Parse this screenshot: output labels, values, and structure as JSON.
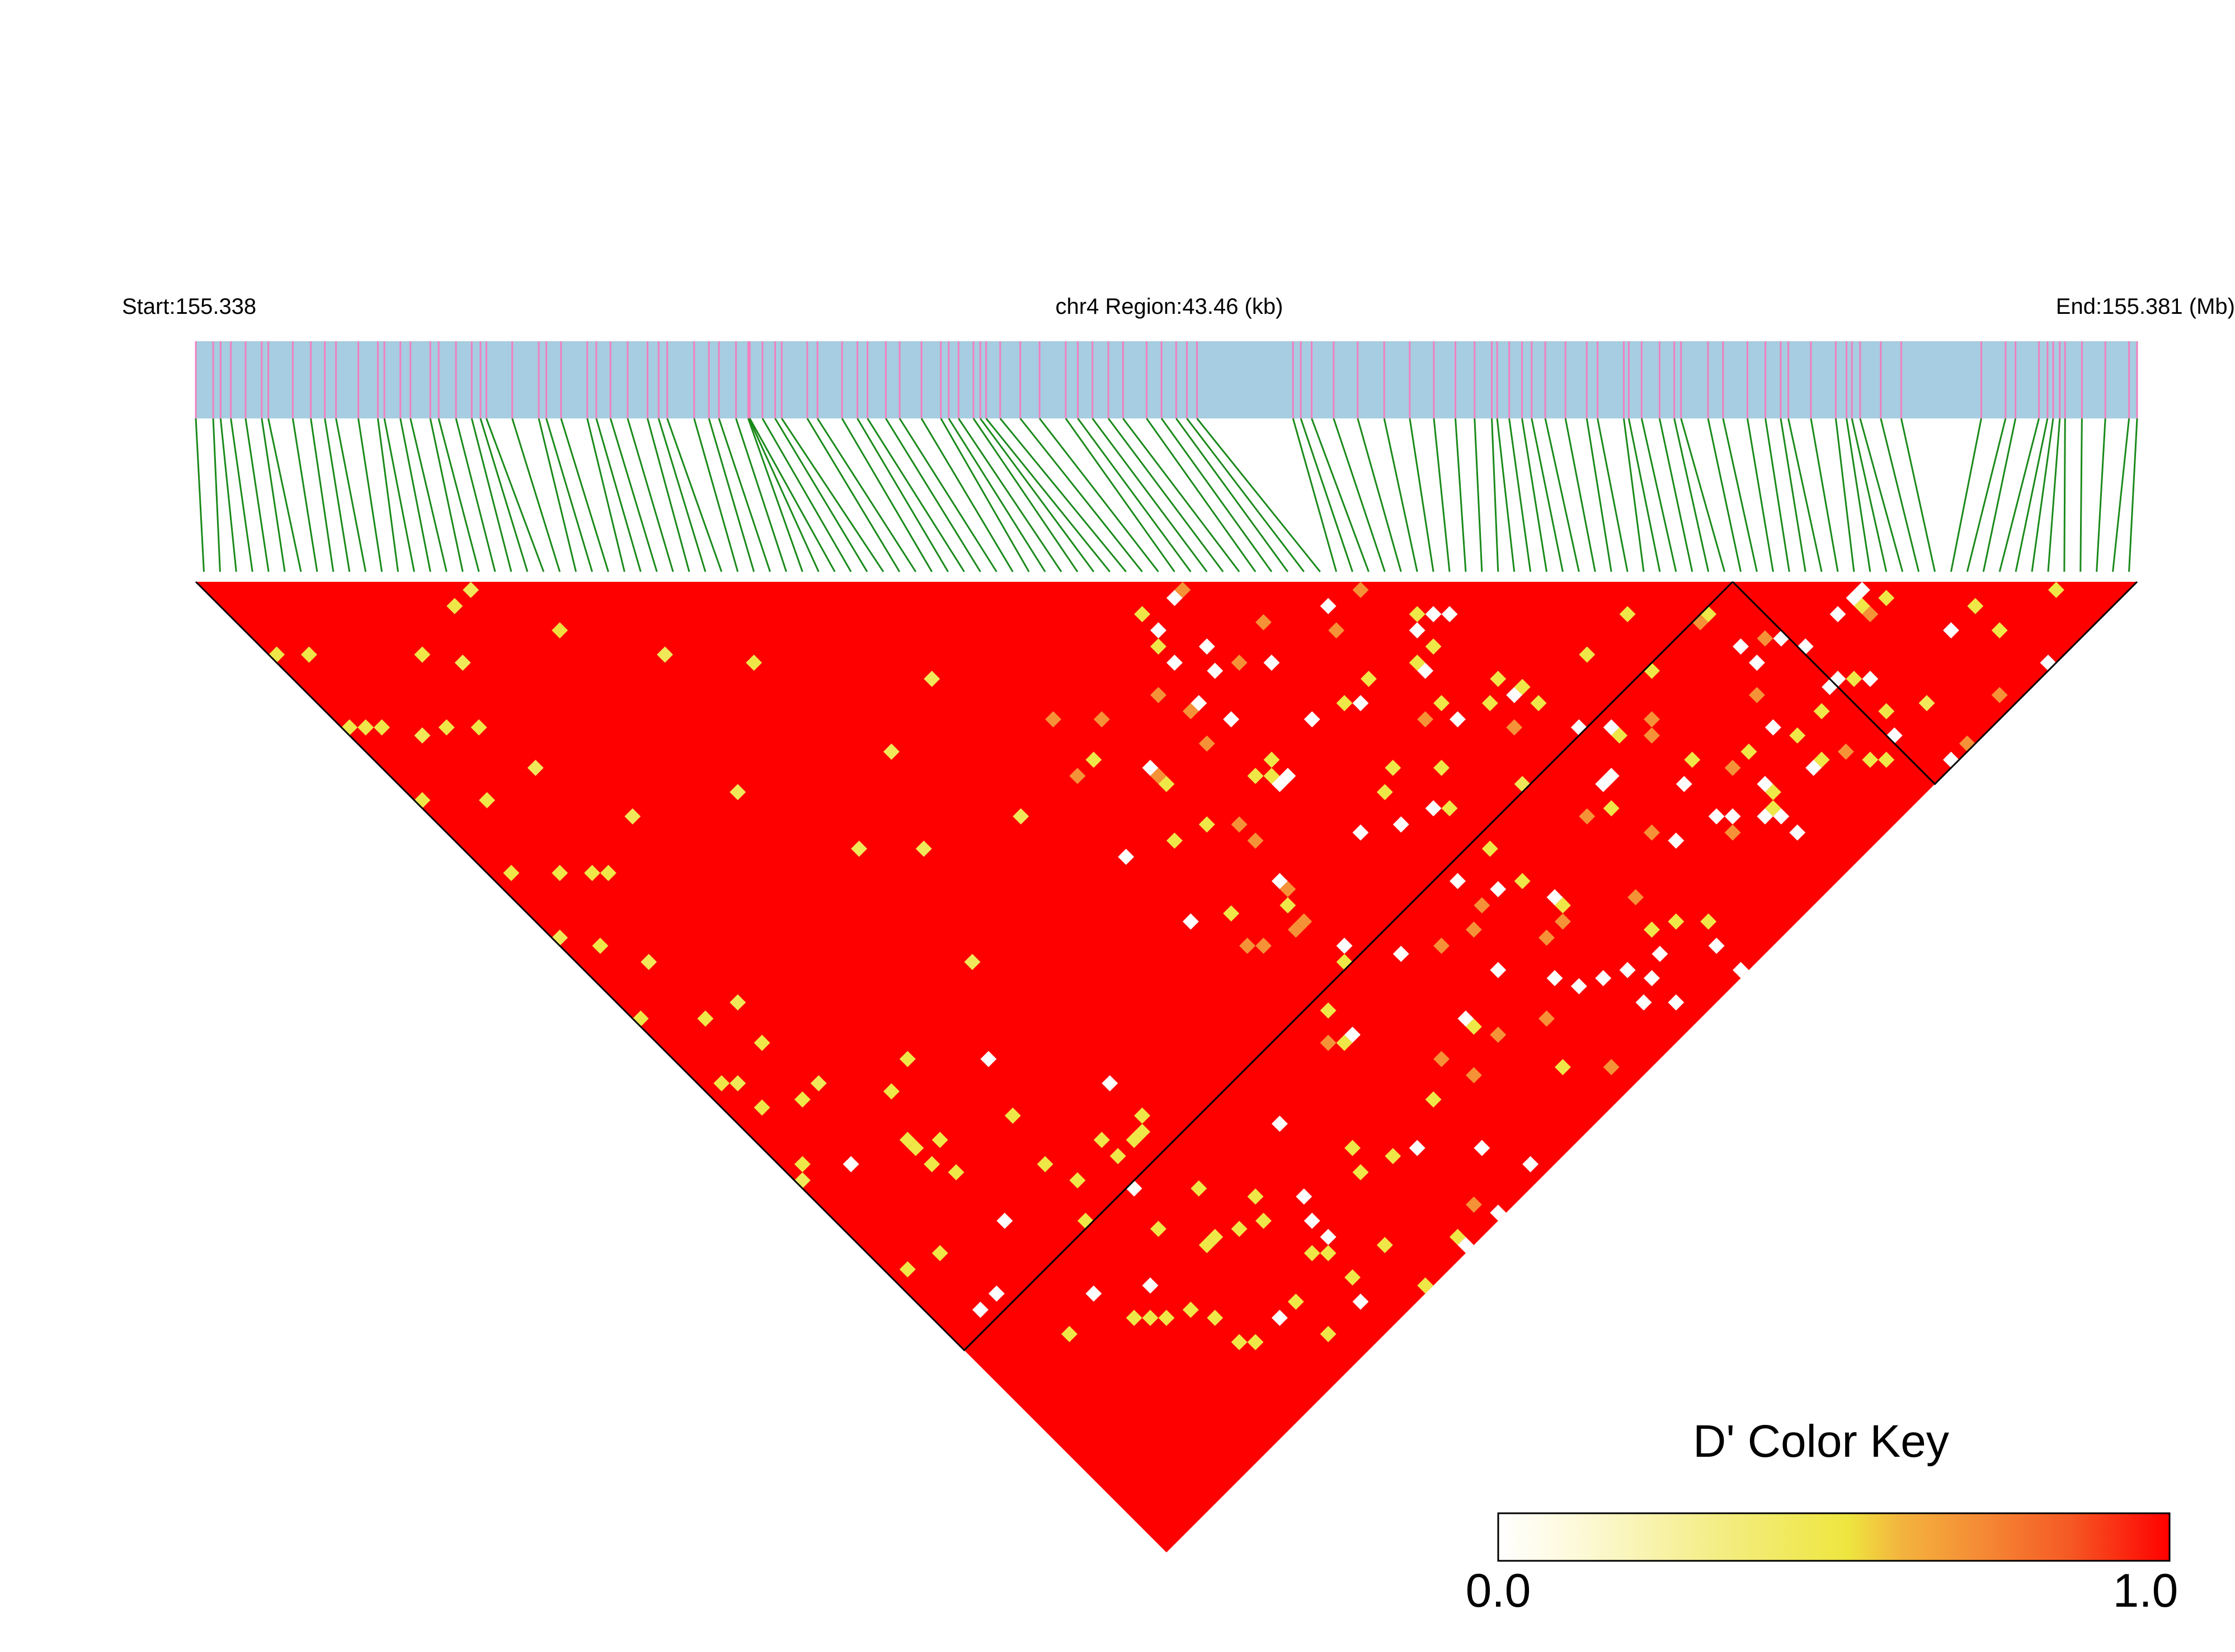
{
  "header": {
    "start_label": "Start:155.338",
    "region_label": "chr4 Region:43.46 (kb)",
    "end_label": "End:155.381 (Mb)"
  },
  "legend": {
    "title": "D' Color Key",
    "min_label": "0.0",
    "max_label": "1.0",
    "gradient_colors": [
      "#ffffff",
      "#fdf7c8",
      "#f2ea6a",
      "#eee63f",
      "#f3b43e",
      "#f58a35",
      "#f55a24",
      "#f42a12",
      "#ff0000"
    ]
  },
  "colors": {
    "gene_track": "#a6cde1",
    "snp_tick": "#f080c0",
    "connector_line": "#1a8a1a",
    "high_ld": "#ff0000",
    "block_outline": "#000000"
  },
  "chart_data": {
    "type": "heatmap",
    "subtype": "ld_triangle",
    "chromosome": "chr4",
    "region_start_mb": 155.338,
    "region_end_mb": 155.381,
    "region_length_kb": 43.46,
    "n_snps": 120,
    "dominant_dprime": 1.0,
    "ld_blocks_snp_index_ranges": [
      [
        1,
        95
      ],
      [
        96,
        120
      ]
    ],
    "notable_low_dprime_cells": [
      {
        "i": 12,
        "j": 22,
        "dprime": 0.3
      },
      {
        "i": 15,
        "j": 18,
        "dprime": 0.35
      },
      {
        "i": 20,
        "j": 26,
        "dprime": 0.4
      },
      {
        "i": 25,
        "j": 34,
        "dprime": 0.3
      },
      {
        "i": 30,
        "j": 40,
        "dprime": 0.35
      },
      {
        "i": 40,
        "j": 52,
        "dprime": 0.3
      },
      {
        "i": 55,
        "j": 80,
        "dprime": 0.0
      },
      {
        "i": 60,
        "j": 90,
        "dprime": 0.0
      },
      {
        "i": 70,
        "j": 95,
        "dprime": 0.3
      },
      {
        "i": 75,
        "j": 100,
        "dprime": 0.0
      },
      {
        "i": 80,
        "j": 105,
        "dprime": 0.0
      },
      {
        "i": 85,
        "j": 110,
        "dprime": 0.0
      },
      {
        "i": 90,
        "j": 112,
        "dprime": 0.35
      },
      {
        "i": 95,
        "j": 108,
        "dprime": 0.0
      },
      {
        "i": 100,
        "j": 115,
        "dprime": 0.3
      }
    ]
  }
}
